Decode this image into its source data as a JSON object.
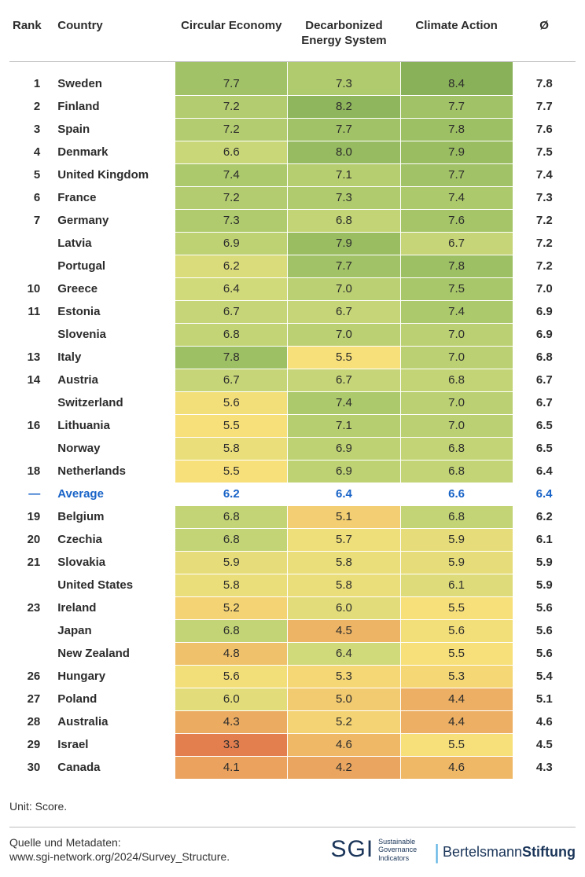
{
  "table": {
    "type": "heatmap-table",
    "headers": {
      "rank": "Rank",
      "country": "Country",
      "m1": "Circular Economy",
      "m2": "Decarbonized Energy System",
      "m3": "Climate Action",
      "avg": "Ø"
    },
    "average_row_label": "Average",
    "average_row_rank": "—",
    "average_text_color": "#1863c7",
    "header_fontsize": 15,
    "cell_fontsize": 15,
    "color_scale": {
      "min_value": 3.0,
      "max_value": 8.5,
      "stops": [
        {
          "value": 3.0,
          "color": "#e0704a"
        },
        {
          "value": 4.5,
          "color": "#edb465"
        },
        {
          "value": 5.5,
          "color": "#f7e07a"
        },
        {
          "value": 6.5,
          "color": "#cdd97a"
        },
        {
          "value": 7.5,
          "color": "#a8c76a"
        },
        {
          "value": 8.5,
          "color": "#86af57"
        }
      ]
    },
    "rows": [
      {
        "rank": "1",
        "country": "Sweden",
        "m1": 7.7,
        "m2": 7.3,
        "m3": 8.4,
        "avg": 7.8
      },
      {
        "rank": "2",
        "country": "Finland",
        "m1": 7.2,
        "m2": 8.2,
        "m3": 7.7,
        "avg": 7.7
      },
      {
        "rank": "3",
        "country": "Spain",
        "m1": 7.2,
        "m2": 7.7,
        "m3": 7.8,
        "avg": 7.6
      },
      {
        "rank": "4",
        "country": "Denmark",
        "m1": 6.6,
        "m2": 8.0,
        "m3": 7.9,
        "avg": 7.5
      },
      {
        "rank": "5",
        "country": "United Kingdom",
        "m1": 7.4,
        "m2": 7.1,
        "m3": 7.7,
        "avg": 7.4
      },
      {
        "rank": "6",
        "country": "France",
        "m1": 7.2,
        "m2": 7.3,
        "m3": 7.4,
        "avg": 7.3
      },
      {
        "rank": "7",
        "country": "Germany",
        "m1": 7.3,
        "m2": 6.8,
        "m3": 7.6,
        "avg": 7.2
      },
      {
        "rank": "",
        "country": "Latvia",
        "m1": 6.9,
        "m2": 7.9,
        "m3": 6.7,
        "avg": 7.2
      },
      {
        "rank": "",
        "country": "Portugal",
        "m1": 6.2,
        "m2": 7.7,
        "m3": 7.8,
        "avg": 7.2
      },
      {
        "rank": "10",
        "country": "Greece",
        "m1": 6.4,
        "m2": 7.0,
        "m3": 7.5,
        "avg": 7.0
      },
      {
        "rank": "11",
        "country": "Estonia",
        "m1": 6.7,
        "m2": 6.7,
        "m3": 7.4,
        "avg": 6.9
      },
      {
        "rank": "",
        "country": "Slovenia",
        "m1": 6.8,
        "m2": 7.0,
        "m3": 7.0,
        "avg": 6.9
      },
      {
        "rank": "13",
        "country": "Italy",
        "m1": 7.8,
        "m2": 5.5,
        "m3": 7.0,
        "avg": 6.8
      },
      {
        "rank": "14",
        "country": "Austria",
        "m1": 6.7,
        "m2": 6.7,
        "m3": 6.8,
        "avg": 6.7
      },
      {
        "rank": "",
        "country": "Switzerland",
        "m1": 5.6,
        "m2": 7.4,
        "m3": 7.0,
        "avg": 6.7
      },
      {
        "rank": "16",
        "country": "Lithuania",
        "m1": 5.5,
        "m2": 7.1,
        "m3": 7.0,
        "avg": 6.5
      },
      {
        "rank": "",
        "country": "Norway",
        "m1": 5.8,
        "m2": 6.9,
        "m3": 6.8,
        "avg": 6.5
      },
      {
        "rank": "18",
        "country": "Netherlands",
        "m1": 5.5,
        "m2": 6.9,
        "m3": 6.8,
        "avg": 6.4
      },
      {
        "rank": "—",
        "country": "Average",
        "m1": 6.2,
        "m2": 6.4,
        "m3": 6.6,
        "avg": 6.4,
        "is_average": true
      },
      {
        "rank": "19",
        "country": "Belgium",
        "m1": 6.8,
        "m2": 5.1,
        "m3": 6.8,
        "avg": 6.2
      },
      {
        "rank": "20",
        "country": "Czechia",
        "m1": 6.8,
        "m2": 5.7,
        "m3": 5.9,
        "avg": 6.1
      },
      {
        "rank": "21",
        "country": "Slovakia",
        "m1": 5.9,
        "m2": 5.8,
        "m3": 5.9,
        "avg": 5.9
      },
      {
        "rank": "",
        "country": "United States",
        "m1": 5.8,
        "m2": 5.8,
        "m3": 6.1,
        "avg": 5.9
      },
      {
        "rank": "23",
        "country": "Ireland",
        "m1": 5.2,
        "m2": 6.0,
        "m3": 5.5,
        "avg": 5.6
      },
      {
        "rank": "",
        "country": "Japan",
        "m1": 6.8,
        "m2": 4.5,
        "m3": 5.6,
        "avg": 5.6
      },
      {
        "rank": "",
        "country": "New Zealand",
        "m1": 4.8,
        "m2": 6.4,
        "m3": 5.5,
        "avg": 5.6
      },
      {
        "rank": "26",
        "country": "Hungary",
        "m1": 5.6,
        "m2": 5.3,
        "m3": 5.3,
        "avg": 5.4
      },
      {
        "rank": "27",
        "country": "Poland",
        "m1": 6.0,
        "m2": 5.0,
        "m3": 4.4,
        "avg": 5.1
      },
      {
        "rank": "28",
        "country": "Australia",
        "m1": 4.3,
        "m2": 5.2,
        "m3": 4.4,
        "avg": 4.6
      },
      {
        "rank": "29",
        "country": "Israel",
        "m1": 3.3,
        "m2": 4.6,
        "m3": 5.5,
        "avg": 4.5
      },
      {
        "rank": "30",
        "country": "Canada",
        "m1": 4.1,
        "m2": 4.2,
        "m3": 4.6,
        "avg": 4.3
      }
    ]
  },
  "footer": {
    "unit_label": "Unit: Score.",
    "source_label": "Quelle und Metadaten:",
    "source_url_text": "www.sgi-network.org/2024/Survey_Structure.",
    "sgi_big": "SGI",
    "sgi_line1": "Sustainable",
    "sgi_line2": "Governance",
    "sgi_line3": "Indicators",
    "bertelsmann_1": "Bertelsmann",
    "bertelsmann_2": "Stiftung"
  }
}
